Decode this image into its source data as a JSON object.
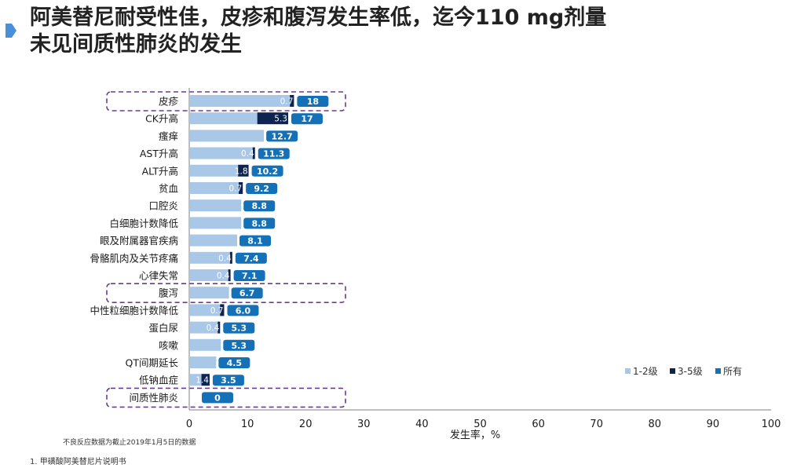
{
  "title": {
    "line1": "阿美替尼耐受性佳，皮疹和腹泻发生率低，迄今110 mg剂量",
    "line2": "未见间质性肺炎的发生"
  },
  "colors": {
    "grade12": "#a9c7e6",
    "grade35": "#0d2451",
    "all": "#1471b8",
    "highlight_border": "#6a3d8f",
    "accent": "#4a90d9"
  },
  "footnote": "不良反应数据为截止2019年1月5日的数据",
  "reference": "1.   甲磺酸阿美替尼片说明书",
  "chart_data": {
    "type": "bar",
    "orientation": "horizontal",
    "xlabel": "发生率，%",
    "xlim": [
      0,
      100
    ],
    "xticks": [
      0,
      10,
      20,
      30,
      40,
      50,
      60,
      70,
      80,
      90,
      100
    ],
    "legend_position": "right",
    "categories": [
      "皮疹",
      "CK升高",
      "瘙痒",
      "AST升高",
      "ALT升高",
      "贫血",
      "口腔炎",
      "白细胞计数降低",
      "眼及附属器官疾病",
      "骨骼肌肉及关节疼痛",
      "心律失常",
      "腹泻",
      "中性粒细胞计数降低",
      "蛋白尿",
      "咳嗽",
      "QT间期延长",
      "低钠血症",
      "间质性肺炎"
    ],
    "highlighted": [
      "皮疹",
      "腹泻",
      "间质性肺炎"
    ],
    "series": [
      {
        "name": "1-2级",
        "values": [
          17.3,
          11.7,
          12.7,
          10.9,
          8.4,
          8.5,
          8.8,
          8.8,
          8.1,
          7.0,
          6.7,
          6.7,
          5.3,
          4.9,
          5.3,
          4.5,
          2.1,
          0
        ]
      },
      {
        "name": "3-5级",
        "values": [
          0.7,
          5.3,
          0,
          0.4,
          1.8,
          0.7,
          0,
          0,
          0,
          0.4,
          0.4,
          0,
          0.7,
          0.4,
          0,
          0,
          1.4,
          0
        ]
      },
      {
        "name": "所有",
        "values": [
          18,
          17,
          12.7,
          11.3,
          10.2,
          9.2,
          8.8,
          8.8,
          8.1,
          7.4,
          7.1,
          6.7,
          6.0,
          5.3,
          5.3,
          4.5,
          3.5,
          0
        ]
      }
    ],
    "grade35_labels": [
      "0.7",
      "5.3",
      "",
      "0.4",
      "1.8",
      "0.7",
      "",
      "",
      "",
      "0.4",
      "0.4",
      "",
      "0.7",
      "0.4",
      "",
      "",
      "1.4",
      ""
    ],
    "all_labels": [
      "18",
      "17",
      "12.7",
      "11.3",
      "10.2",
      "9.2",
      "8.8",
      "8.8",
      "8.1",
      "7.4",
      "7.1",
      "6.7",
      "6.0",
      "5.3",
      "5.3",
      "4.5",
      "3.5",
      "0"
    ]
  }
}
